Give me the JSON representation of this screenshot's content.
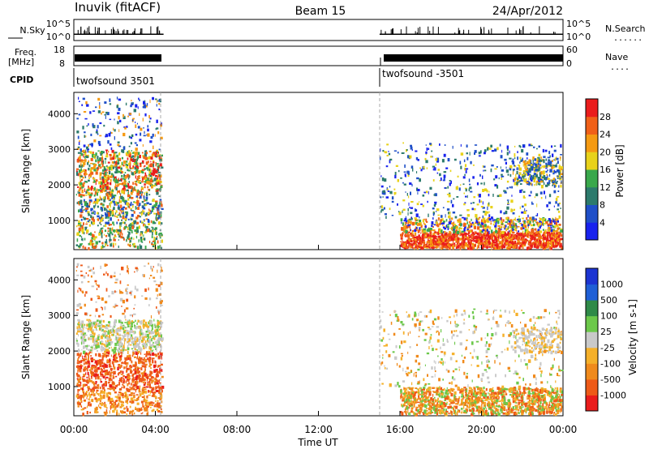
{
  "header": {
    "station": "Inuvik (fitACF)",
    "beam": "Beam 15",
    "date": "24/Apr/2012"
  },
  "chart_data": [
    {
      "type": "line",
      "panel": "nsky",
      "left_label": "N.Sky",
      "right_label": "N.Search",
      "left_ticks": [
        "10^5",
        "10^0"
      ],
      "right_ticks": [
        "10^5",
        "10^0"
      ],
      "series": [
        {
          "x_hours": [
            0.0,
            0.3,
            0.6,
            1.0,
            1.5,
            2.0,
            2.5,
            3.0,
            3.5,
            4.0,
            4.4
          ],
          "level": [
            0.3,
            0.3,
            0.3,
            0.3,
            0.3,
            0.3,
            0.3,
            0.3,
            0.3,
            0.3,
            0.3
          ]
        },
        {
          "x_hours": [
            15.0,
            16.0,
            17.0,
            18.0,
            19.0,
            20.0,
            21.0,
            22.0,
            23.0,
            24.0
          ],
          "level": [
            0.3,
            0.3,
            0.3,
            0.3,
            0.3,
            0.3,
            0.3,
            0.3,
            0.3,
            0.3
          ]
        }
      ]
    },
    {
      "type": "line",
      "panel": "freq",
      "left_label_top": "Freq.",
      "left_label_bottom": "[MHz]",
      "right_label": "Nave",
      "left_ticks": [
        "18",
        "8"
      ],
      "right_ticks": [
        "60",
        "0"
      ]
    },
    {
      "type": "table",
      "panel": "cpid",
      "label": "CPID",
      "segments": [
        {
          "start_hour": 0.0,
          "label": "twofsound 3501"
        },
        {
          "start_hour": 15.0,
          "label": "twofsound -3501"
        }
      ]
    },
    {
      "type": "heatmap",
      "panel": "power",
      "ylabel": "Slant Range [km]",
      "yticks": [
        1000,
        2000,
        3000,
        4000
      ],
      "ylim": [
        180,
        4600
      ],
      "xlim": [
        0,
        24
      ],
      "colorbar_label": "Power [dB]",
      "colorbar_ticks": [
        "4",
        "8",
        "12",
        "16",
        "20",
        "24",
        "28"
      ],
      "colorbar_colors": [
        "#1822ee",
        "#1f4fc8",
        "#2c7a6c",
        "#39a84b",
        "#e8d21a",
        "#f59a12",
        "#f06018",
        "#ea1c1c"
      ],
      "data_gaps_hours": [
        [
          4.4,
          15.0
        ]
      ]
    },
    {
      "type": "heatmap",
      "panel": "velocity",
      "ylabel": "Slant Range [km]",
      "yticks": [
        1000,
        2000,
        3000,
        4000
      ],
      "ylim": [
        180,
        4600
      ],
      "xlim": [
        0,
        24
      ],
      "colorbar_label": "Velocity [m s-1]",
      "colorbar_ticks": [
        "1000",
        "500",
        "100",
        "25",
        "-25",
        "-100",
        "-500",
        "-1000"
      ],
      "colorbar_colors": [
        "#1c34d2",
        "#1f5fd6",
        "#2f8a48",
        "#6cc84a",
        "#c9c9c9",
        "#f5b02a",
        "#f08a1c",
        "#ee5a18",
        "#ea1c1c"
      ],
      "data_gaps_hours": [
        [
          4.4,
          15.0
        ]
      ]
    }
  ],
  "xaxis": {
    "ticks": [
      "00:00",
      "04:00",
      "08:00",
      "12:00",
      "16:00",
      "20:00",
      "00:00"
    ],
    "label": "Time UT"
  }
}
